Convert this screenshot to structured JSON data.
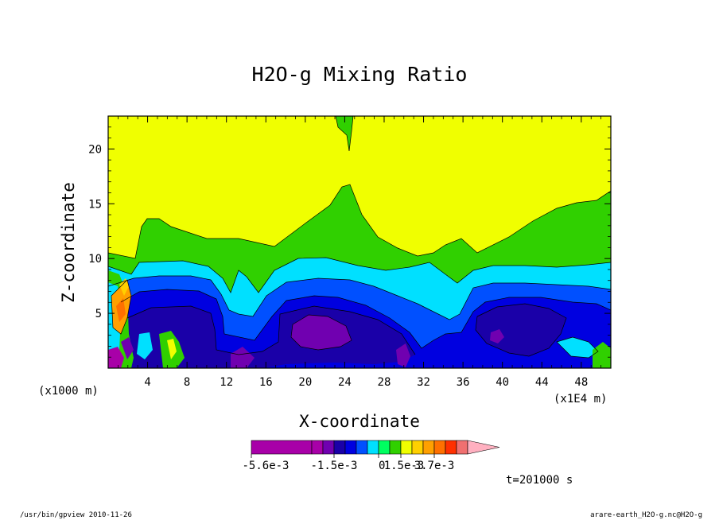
{
  "chart_data": {
    "type": "heatmap",
    "title": "H2O-g Mixing Ratio",
    "xlabel": "X-coordinate",
    "ylabel": "Z-coordinate",
    "x_unit": "(x1E4 m)",
    "z_unit": "(x1000 m)",
    "xlim": [
      0,
      51
    ],
    "ylim": [
      0,
      23
    ],
    "x_ticks": [
      4,
      8,
      12,
      16,
      20,
      24,
      28,
      32,
      36,
      40,
      44,
      48
    ],
    "x_tick_labels": [
      "4",
      "8",
      "12",
      "16",
      "20",
      "24",
      "28",
      "32",
      "36",
      "40",
      "44",
      "48"
    ],
    "y_ticks": [
      5,
      10,
      15,
      20
    ],
    "y_tick_labels": [
      "5",
      "10",
      "15",
      "20"
    ],
    "colorbar": {
      "labels": [
        "-5.6e-3",
        "-1.5e-3",
        "0",
        "1.5e-3",
        "3.7e-3"
      ],
      "colors": [
        "#a800a8",
        "#a800a8",
        "#7000b0",
        "#1a00a8",
        "#0000e0",
        "#0050ff",
        "#00e0ff",
        "#00ff60",
        "#30d000",
        "#f0ff00",
        "#ffd000",
        "#ffa000",
        "#ff7000",
        "#ff3000",
        "#f07070",
        "#ffb0c0"
      ]
    },
    "time_label": "t=201000 s"
  },
  "footer": {
    "left": "/usr/bin/gpview   2010-11-26",
    "right": "arare-earth_H2O-g.nc@H2O-g"
  }
}
